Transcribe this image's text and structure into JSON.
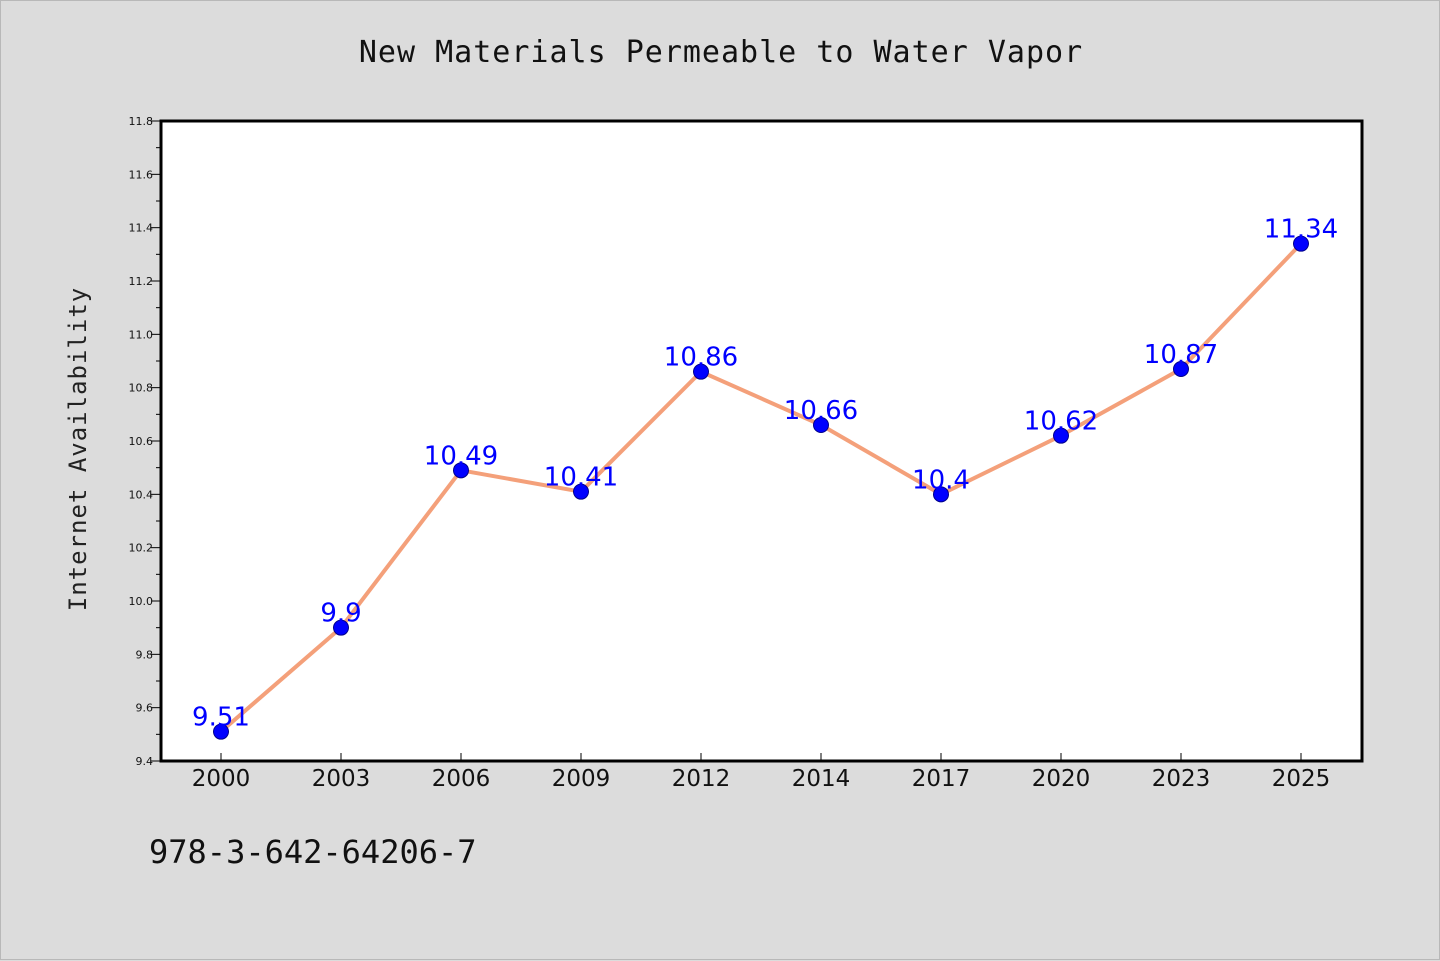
{
  "chart_data": {
    "type": "line",
    "title": "New Materials Permeable to Water Vapor",
    "xlabel": "",
    "ylabel": "Internet Availability",
    "categories": [
      "2000",
      "2003",
      "2006",
      "2009",
      "2012",
      "2014",
      "2017",
      "2020",
      "2023",
      "2025"
    ],
    "series": [
      {
        "values": [
          9.51,
          9.9,
          10.49,
          10.41,
          10.86,
          10.66,
          10.4,
          10.62,
          10.87,
          11.34
        ],
        "data_labels": [
          "9.51",
          "9.9",
          "10.49",
          "10.41",
          "10.86",
          "10.66",
          "10.4",
          "10.62",
          "10.87",
          "11.34"
        ],
        "line_color": "#f4a07a",
        "marker_color": "#0000ff"
      }
    ],
    "ylim": [
      9.4,
      11.8
    ],
    "yticks": [
      "9.4",
      "9.6",
      "9.8",
      "10.0",
      "10.2",
      "10.4",
      "10.6",
      "10.8",
      "11.0",
      "11.2",
      "11.4",
      "11.6",
      "11.8"
    ],
    "grid": false,
    "label_color": "#0000ff"
  },
  "footer_text": "978-3-642-64206-7"
}
